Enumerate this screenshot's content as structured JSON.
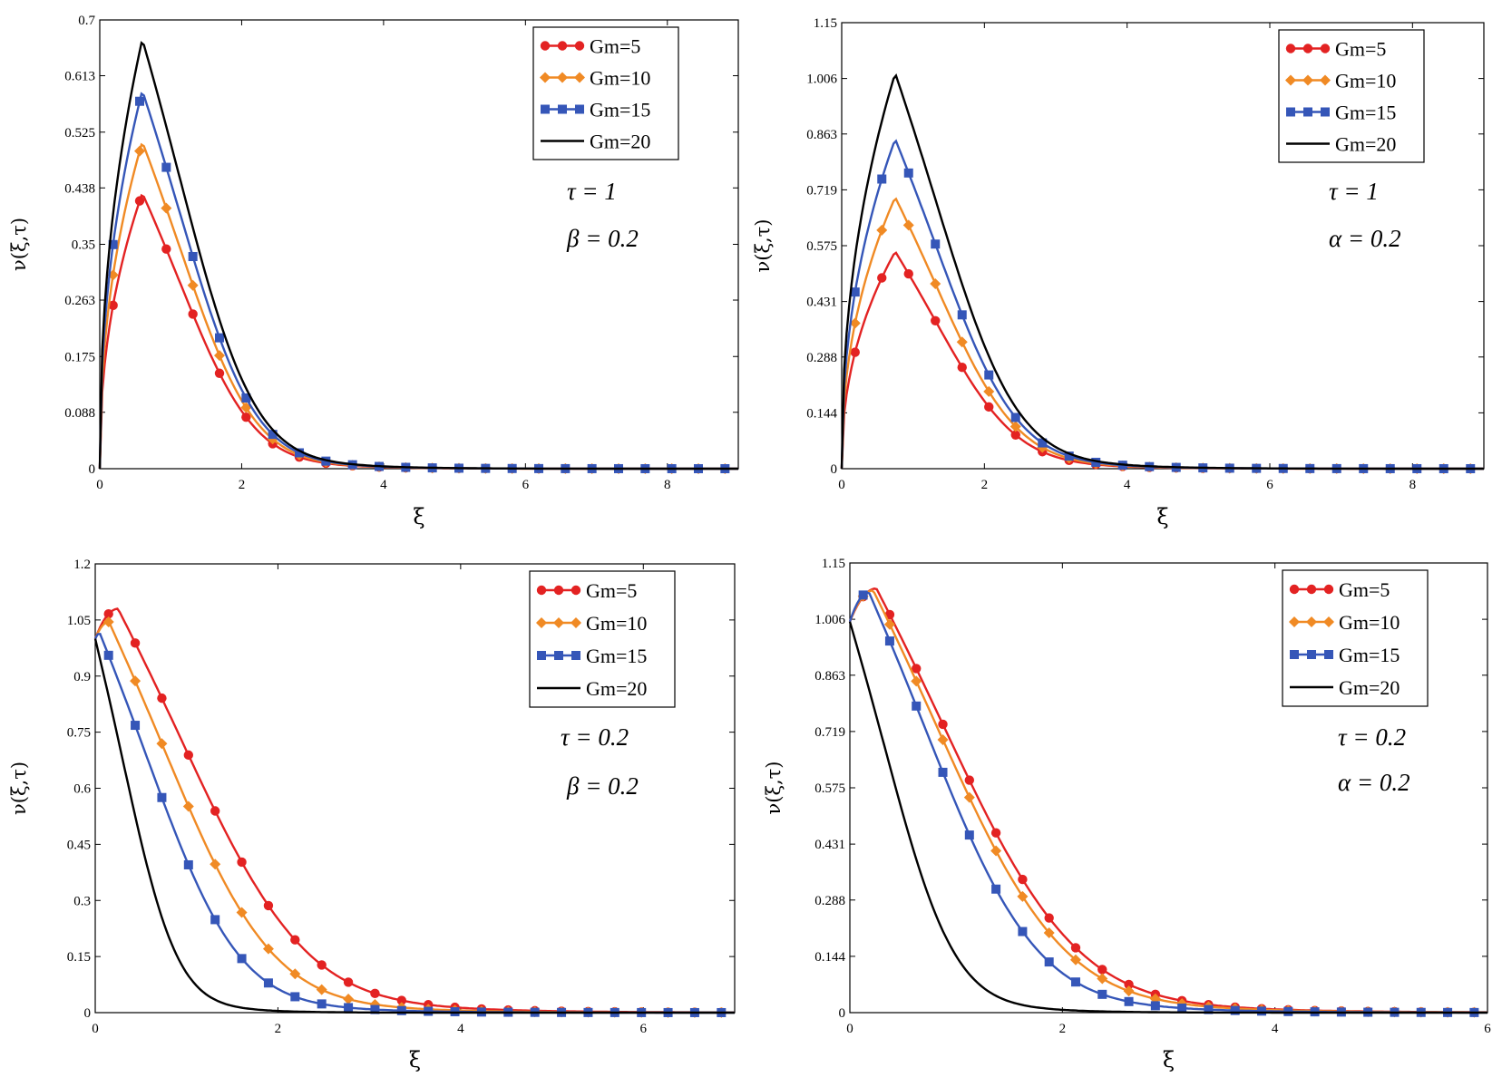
{
  "figure": "four-panel velocity profiles",
  "colors": {
    "Gm=5": "#e32222",
    "Gm=10": "#f08a24",
    "Gm=15": "#3556b8",
    "Gm=20": "#000000"
  },
  "markers": {
    "Gm=5": "circle",
    "Gm=10": "diamond",
    "Gm=15": "square",
    "Gm=20": "none"
  },
  "chart_data": [
    {
      "type": "line",
      "panel": "top-left",
      "xlabel": "ξ",
      "ylabel": "ν(ξ,τ)",
      "xlim": [
        0,
        9
      ],
      "ylim": [
        0,
        0.7
      ],
      "xticks": [
        "0",
        "2",
        "4",
        "6",
        "8"
      ],
      "xtick_values": [
        0,
        2,
        4,
        6,
        8
      ],
      "yticks": [
        "0",
        "0.088",
        "0.175",
        "0.263",
        "0.35",
        "0.438",
        "0.525",
        "0.613",
        "0.7"
      ],
      "ytick_values": [
        0,
        0.088,
        0.175,
        0.263,
        0.35,
        0.438,
        0.525,
        0.613,
        0.7
      ],
      "annotations": [
        "τ = 1",
        "β = 0.2"
      ],
      "legend_position": "top-right",
      "profile": {
        "start": 0,
        "tail": 0
      },
      "series": [
        {
          "name": "Gm=5",
          "peak": 0.43,
          "peak_x": 0.6,
          "decay": 0.88
        },
        {
          "name": "Gm=10",
          "peak": 0.51,
          "peak_x": 0.6,
          "decay": 0.88
        },
        {
          "name": "Gm=15",
          "peak": 0.59,
          "peak_x": 0.6,
          "decay": 0.88
        },
        {
          "name": "Gm=20",
          "peak": 0.67,
          "peak_x": 0.6,
          "decay": 0.88
        }
      ]
    },
    {
      "type": "line",
      "panel": "top-right",
      "xlabel": "ξ",
      "ylabel": "ν(ξ,τ)",
      "xlim": [
        0,
        9
      ],
      "ylim": [
        0,
        1.15
      ],
      "xticks": [
        "0",
        "2",
        "4",
        "6",
        "8"
      ],
      "xtick_values": [
        0,
        2,
        4,
        6,
        8
      ],
      "yticks": [
        "0",
        "0.144",
        "0.288",
        "0.431",
        "0.575",
        "0.719",
        "0.863",
        "1.006",
        "1.15"
      ],
      "ytick_values": [
        0,
        0.144,
        0.288,
        0.431,
        0.575,
        0.719,
        0.863,
        1.006,
        1.15
      ],
      "annotations": [
        "τ = 1",
        "α = 0.2"
      ],
      "legend_position": "top-right",
      "profile": {
        "start": 0,
        "tail": 0
      },
      "series": [
        {
          "name": "Gm=5",
          "peak": 0.56,
          "peak_x": 0.75,
          "decay": 0.95
        },
        {
          "name": "Gm=10",
          "peak": 0.7,
          "peak_x": 0.75,
          "decay": 0.95
        },
        {
          "name": "Gm=15",
          "peak": 0.85,
          "peak_x": 0.75,
          "decay": 0.95
        },
        {
          "name": "Gm=20",
          "peak": 1.02,
          "peak_x": 0.75,
          "decay": 0.95
        }
      ]
    },
    {
      "type": "line",
      "panel": "bottom-left",
      "xlabel": "ξ",
      "ylabel": "ν(ξ,τ)",
      "xlim": [
        0,
        7
      ],
      "ylim": [
        0,
        1.2
      ],
      "xticks": [
        "0",
        "2",
        "4",
        "6"
      ],
      "xtick_values": [
        0,
        2,
        4,
        6
      ],
      "yticks": [
        "0",
        "0.15",
        "0.3",
        "0.45",
        "0.6",
        "0.75",
        "0.9",
        "1.05",
        "1.2"
      ],
      "ytick_values": [
        0,
        0.15,
        0.3,
        0.45,
        0.6,
        0.75,
        0.9,
        1.05,
        1.2
      ],
      "annotations": [
        "τ = 0.2",
        "β = 0.2"
      ],
      "legend_position": "top-right",
      "profile": {
        "start": 1.0,
        "tail": 0
      },
      "series": [
        {
          "name": "Gm=5",
          "peak": 1.08,
          "peak_x": 0.25,
          "decay": 1.15
        },
        {
          "name": "Gm=10",
          "peak": 1.045,
          "peak_x": 0.15,
          "decay": 1.0
        },
        {
          "name": "Gm=15",
          "peak": 1.015,
          "peak_x": 0.05,
          "decay": 0.85
        },
        {
          "name": "Gm=20",
          "peak": 1.0,
          "peak_x": 0.0,
          "decay": 0.5
        }
      ]
    },
    {
      "type": "line",
      "panel": "bottom-right",
      "xlabel": "ξ",
      "ylabel": "ν(ξ,τ)",
      "xlim": [
        0,
        6
      ],
      "ylim": [
        0,
        1.15
      ],
      "xticks": [
        "0",
        "2",
        "4",
        "6"
      ],
      "xtick_values": [
        0,
        2,
        4,
        6
      ],
      "yticks": [
        "0",
        "0.144",
        "0.288",
        "0.431",
        "0.575",
        "0.719",
        "0.863",
        "1.006",
        "1.15"
      ],
      "ytick_values": [
        0,
        0.144,
        0.288,
        0.431,
        0.575,
        0.719,
        0.863,
        1.006,
        1.15
      ],
      "annotations": [
        "τ = 0.2",
        "α = 0.2"
      ],
      "legend_position": "top-right",
      "profile": {
        "start": 1.0,
        "tail": 0
      },
      "series": [
        {
          "name": "Gm=5",
          "peak": 1.085,
          "peak_x": 0.25,
          "decay": 1.05
        },
        {
          "name": "Gm=10",
          "peak": 1.08,
          "peak_x": 0.22,
          "decay": 1.0
        },
        {
          "name": "Gm=15",
          "peak": 1.075,
          "peak_x": 0.18,
          "decay": 0.88
        },
        {
          "name": "Gm=20",
          "peak": 1.0,
          "peak_x": 0.0,
          "decay": 0.55
        }
      ]
    }
  ]
}
